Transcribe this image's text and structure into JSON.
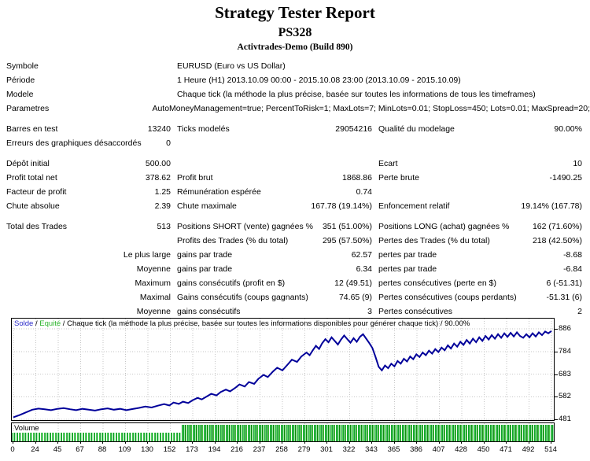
{
  "header": {
    "title": "Strategy Tester Report",
    "subtitle": "PS328",
    "account": "Activtrades-Demo (Build 890)"
  },
  "report": {
    "rows": [
      {
        "l1": "Symbole",
        "v1": "",
        "wide": "EURUSD (Euro vs US Dollar)"
      },
      {
        "l1": "Période",
        "v1": "",
        "wide": "1 Heure (H1) 2013.10.09 00:00 - 2015.10.08 23:00 (2013.10.09 - 2015.10.09)"
      },
      {
        "l1": "Modele",
        "v1": "",
        "wide": "Chaque tick (la méthode la plus précise, basée sur toutes les informations de tous les timeframes)"
      },
      {
        "l1": "Parametres",
        "v1": "",
        "wide": "AutoMoneyManagement=true; PercentToRisk=1; MaxLots=7; MinLots=0.01; StopLoss=450; Lots=0.01; MaxSpread=20;"
      },
      {
        "gap": true,
        "l1": "Barres en test",
        "v1": "13240",
        "l2": "Ticks modelés",
        "v2": "29054216",
        "l3": "Qualité du modelage",
        "v3": "90.00%"
      },
      {
        "l1": "Erreurs des graphiques désaccordés",
        "v1": "0",
        "l2": "",
        "v2": "",
        "l3": "",
        "v3": ""
      },
      {
        "gap": true,
        "l1": "Dépôt initial",
        "v1": "500.00",
        "l2": "",
        "v2": "",
        "l3": "Ecart",
        "v3": "10"
      },
      {
        "l1": "Profit total net",
        "v1": "378.62",
        "l2": "Profit brut",
        "v2": "1868.86",
        "l3": "Perte brute",
        "v3": "-1490.25"
      },
      {
        "l1": "Facteur de profit",
        "v1": "1.25",
        "l2": "Rémunération espérée",
        "v2": "0.74",
        "l3": "",
        "v3": ""
      },
      {
        "l1": "Chute absolue",
        "v1": "2.39",
        "l2": "Chute maximale",
        "v2": "167.78 (19.14%)",
        "l3": "Enfoncement relatif",
        "v3": "19.14% (167.78)"
      },
      {
        "gap": true,
        "l1": "Total des Trades",
        "v1": "513",
        "l2": "Positions SHORT (vente) gagnées %",
        "v2": "351 (51.00%)",
        "l3": "Positions LONG (achat) gagnées %",
        "v3": "162 (71.60%)"
      },
      {
        "l1": "",
        "v1": "",
        "l2": "Profits des Trades (% du total)",
        "v2": "295 (57.50%)",
        "l3": "Pertes des Trades (% du total)",
        "v3": "218 (42.50%)"
      },
      {
        "l1": "",
        "v1": "Le plus large",
        "l2": "gains par trade",
        "v2": "62.57",
        "l3": "pertes par trade",
        "v3": "-8.68"
      },
      {
        "l1": "",
        "v1": "Moyenne",
        "l2": "gains par trade",
        "v2": "6.34",
        "l3": "pertes par trade",
        "v3": "-6.84"
      },
      {
        "l1": "",
        "v1": "Maximum",
        "l2": "gains consécutifs (profit en $)",
        "v2": "12 (49.51)",
        "l3": "pertes consécutives (perte en $)",
        "v3": "6 (-51.31)"
      },
      {
        "l1": "",
        "v1": "Maximal",
        "l2": "Gains consécutifs (coups gagnants)",
        "v2": "74.65 (9)",
        "l3": "Pertes consécutives (coups perdants)",
        "v3": "-51.31 (6)"
      },
      {
        "l1": "",
        "v1": "Moyenne",
        "l2": "gains consécutifs",
        "v2": "3",
        "l3": "Pertes consécutives",
        "v3": "2"
      }
    ]
  },
  "chart": {
    "legend": [
      {
        "text": "Solde",
        "color": "#2a2ac8"
      },
      {
        "text": " / ",
        "color": "#000000"
      },
      {
        "text": "Equité",
        "color": "#2db52d"
      },
      {
        "text": " / Chaque tick (la méthode la plus précise, basée sur toutes les informations disponibles pour générer chaque tick) / 90.00%",
        "color": "#000000"
      }
    ],
    "line_color": "#00009a",
    "grid_color": "#c6c6c6",
    "volume_label": "Volume"
  },
  "chart_data": {
    "type": "line",
    "title": "Solde / Equité / Chaque tick (la méthode la plus précise, basée sur toutes les informations disponibles pour générer chaque tick) / 90.00%",
    "xlabel": "",
    "ylabel": "",
    "x_ticks": [
      0,
      24,
      45,
      67,
      88,
      109,
      130,
      152,
      173,
      194,
      216,
      237,
      258,
      279,
      301,
      322,
      343,
      365,
      386,
      407,
      428,
      450,
      471,
      492,
      514
    ],
    "y_ticks": [
      886,
      784,
      683,
      582,
      481
    ],
    "xlim": [
      0,
      514
    ],
    "ylim": [
      474,
      930
    ],
    "grid": true,
    "legend_position": "top-left",
    "series": [
      {
        "name": "Solde",
        "color": "#00009a",
        "points": [
          [
            0,
            490
          ],
          [
            6,
            500
          ],
          [
            12,
            512
          ],
          [
            18,
            524
          ],
          [
            24,
            529
          ],
          [
            30,
            526
          ],
          [
            36,
            522
          ],
          [
            42,
            528
          ],
          [
            48,
            531
          ],
          [
            54,
            526
          ],
          [
            60,
            522
          ],
          [
            66,
            528
          ],
          [
            72,
            524
          ],
          [
            78,
            520
          ],
          [
            84,
            526
          ],
          [
            90,
            530
          ],
          [
            96,
            524
          ],
          [
            102,
            528
          ],
          [
            108,
            522
          ],
          [
            114,
            527
          ],
          [
            120,
            532
          ],
          [
            126,
            538
          ],
          [
            132,
            534
          ],
          [
            138,
            542
          ],
          [
            144,
            549
          ],
          [
            149,
            543
          ],
          [
            153,
            556
          ],
          [
            158,
            550
          ],
          [
            162,
            560
          ],
          [
            167,
            554
          ],
          [
            171,
            566
          ],
          [
            176,
            577
          ],
          [
            180,
            570
          ],
          [
            185,
            584
          ],
          [
            189,
            595
          ],
          [
            194,
            588
          ],
          [
            198,
            603
          ],
          [
            203,
            614
          ],
          [
            207,
            606
          ],
          [
            212,
            622
          ],
          [
            216,
            637
          ],
          [
            221,
            628
          ],
          [
            225,
            648
          ],
          [
            230,
            640
          ],
          [
            234,
            662
          ],
          [
            239,
            680
          ],
          [
            243,
            670
          ],
          [
            248,
            695
          ],
          [
            252,
            712
          ],
          [
            257,
            700
          ],
          [
            262,
            726
          ],
          [
            266,
            748
          ],
          [
            271,
            738
          ],
          [
            275,
            762
          ],
          [
            280,
            780
          ],
          [
            283,
            768
          ],
          [
            286,
            790
          ],
          [
            289,
            810
          ],
          [
            292,
            796
          ],
          [
            295,
            822
          ],
          [
            298,
            840
          ],
          [
            301,
            826
          ],
          [
            304,
            848
          ],
          [
            307,
            832
          ],
          [
            310,
            816
          ],
          [
            313,
            838
          ],
          [
            316,
            856
          ],
          [
            319,
            840
          ],
          [
            322,
            824
          ],
          [
            325,
            844
          ],
          [
            328,
            828
          ],
          [
            331,
            850
          ],
          [
            334,
            862
          ],
          [
            337,
            842
          ],
          [
            340,
            822
          ],
          [
            343,
            800
          ],
          [
            346,
            760
          ],
          [
            349,
            716
          ],
          [
            352,
            700
          ],
          [
            355,
            722
          ],
          [
            358,
            710
          ],
          [
            361,
            730
          ],
          [
            364,
            718
          ],
          [
            367,
            742
          ],
          [
            370,
            730
          ],
          [
            373,
            752
          ],
          [
            376,
            740
          ],
          [
            379,
            762
          ],
          [
            382,
            750
          ],
          [
            385,
            772
          ],
          [
            388,
            760
          ],
          [
            391,
            780
          ],
          [
            394,
            768
          ],
          [
            397,
            788
          ],
          [
            400,
            775
          ],
          [
            403,
            795
          ],
          [
            406,
            782
          ],
          [
            409,
            802
          ],
          [
            412,
            790
          ],
          [
            415,
            812
          ],
          [
            418,
            798
          ],
          [
            421,
            820
          ],
          [
            424,
            806
          ],
          [
            427,
            828
          ],
          [
            430,
            814
          ],
          [
            433,
            836
          ],
          [
            436,
            820
          ],
          [
            439,
            842
          ],
          [
            442,
            826
          ],
          [
            445,
            848
          ],
          [
            448,
            832
          ],
          [
            451,
            854
          ],
          [
            454,
            838
          ],
          [
            457,
            858
          ],
          [
            460,
            842
          ],
          [
            463,
            862
          ],
          [
            466,
            846
          ],
          [
            469,
            866
          ],
          [
            472,
            850
          ],
          [
            475,
            868
          ],
          [
            478,
            852
          ],
          [
            481,
            870
          ],
          [
            484,
            854
          ],
          [
            487,
            846
          ],
          [
            490,
            862
          ],
          [
            493,
            848
          ],
          [
            496,
            866
          ],
          [
            499,
            852
          ],
          [
            502,
            870
          ],
          [
            505,
            858
          ],
          [
            508,
            874
          ],
          [
            511,
            866
          ],
          [
            514,
            876
          ]
        ]
      }
    ],
    "volume": {
      "label": "Volume",
      "color": "#18a818",
      "sections": [
        {
          "from_trade": 0,
          "to_trade": 160,
          "height": "half"
        },
        {
          "from_trade": 161,
          "to_trade": 514,
          "height": "full"
        }
      ]
    }
  }
}
